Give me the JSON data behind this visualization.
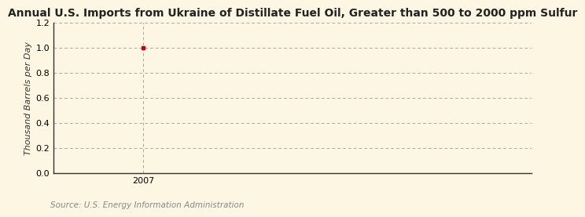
{
  "title": "Annual U.S. Imports from Ukraine of Distillate Fuel Oil, Greater than 500 to 2000 ppm Sulfur",
  "ylabel": "Thousand Barrels per Day",
  "source": "Source: U.S. Energy Information Administration",
  "x_data": [
    2007
  ],
  "y_data": [
    1.0
  ],
  "xlim": [
    2006.7,
    2008.3
  ],
  "ylim": [
    0.0,
    1.2
  ],
  "yticks": [
    0.0,
    0.2,
    0.4,
    0.6,
    0.8,
    1.0,
    1.2
  ],
  "xticks": [
    2007
  ],
  "data_color": "#cc0000",
  "bg_color": "#fdf6e3",
  "grid_color": "#aaaaaa",
  "spine_color": "#333333",
  "title_fontsize": 10,
  "label_fontsize": 8,
  "tick_fontsize": 8,
  "source_fontsize": 7.5,
  "source_color": "#888888"
}
